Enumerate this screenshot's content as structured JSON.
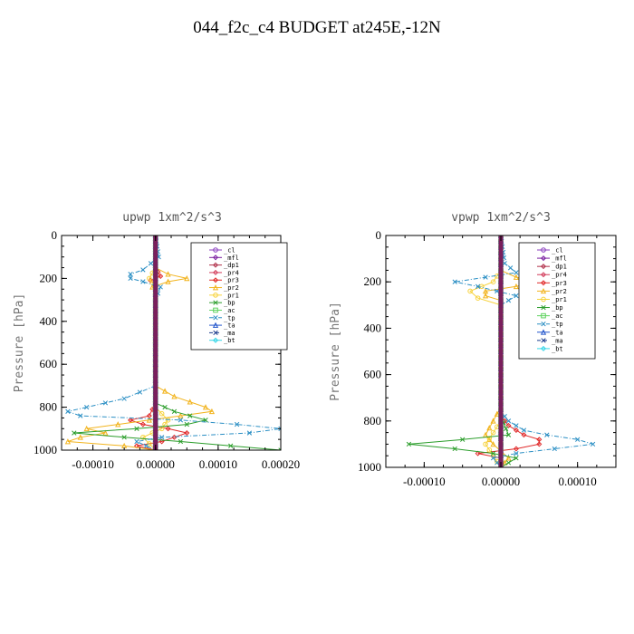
{
  "title": "044_f2c_c4  BUDGET at245E,-12N",
  "chart_data": [
    {
      "type": "line",
      "title": "upwp   1xm^2/s^3",
      "ylabel": "Pressure [hPa]",
      "xlabel": "",
      "xlim": [
        -0.00015,
        0.0002
      ],
      "ylim": [
        1000,
        0
      ],
      "xticks": [
        -0.0001,
        0.0,
        0.0001,
        0.0002
      ],
      "xtick_labels": [
        "-0.00010",
        "0.00000",
        "0.00010",
        "0.00020"
      ],
      "yticks": [
        0,
        200,
        400,
        600,
        800,
        1000
      ],
      "ytick_labels": [
        "0",
        "200",
        "400",
        "600",
        "800",
        "1000"
      ],
      "legend_position": "top-right",
      "series": [
        {
          "name": "_cl",
          "color": "#8b3fbf",
          "p": [
            0,
            1000
          ],
          "x": [
            0,
            0
          ]
        },
        {
          "name": "_mfl",
          "color": "#7a1fa0",
          "p": [
            0,
            1000
          ],
          "x": [
            0,
            0
          ]
        },
        {
          "name": "_dp1",
          "color": "#b0304a",
          "p": [
            0,
            1000
          ],
          "x": [
            0,
            0
          ]
        },
        {
          "name": "_pr4",
          "color": "#d23c5a",
          "p": [
            0,
            1000
          ],
          "x": [
            0,
            0
          ]
        },
        {
          "name": "_pr3",
          "color": "#e02828",
          "p": [
            150,
            190,
            210,
            230,
            780,
            840,
            860,
            880,
            900,
            920,
            940,
            960,
            980,
            1000
          ],
          "x": [
            0,
            8e-06,
            -8e-06,
            0,
            0,
            -1e-05,
            -4e-05,
            -2e-05,
            2e-05,
            5e-05,
            3e-05,
            1e-05,
            -3e-05,
            0
          ]
        },
        {
          "name": "_pr2",
          "color": "#f2b41e",
          "p": [
            150,
            180,
            200,
            215,
            240,
            260,
            700,
            750,
            800,
            820,
            840,
            860,
            880,
            900,
            920,
            940,
            960,
            980,
            1000
          ],
          "x": [
            0,
            2e-05,
            5e-05,
            2e-05,
            -5e-06,
            0,
            0,
            3e-05,
            8e-05,
            9e-05,
            4e-05,
            -1e-05,
            -6e-05,
            -0.00011,
            -8e-05,
            -0.00012,
            -0.00014,
            -5e-05,
            0
          ]
        },
        {
          "name": "_pr1",
          "color": "#f7d23a",
          "p": [
            150,
            200,
            240,
            800,
            860,
            900,
            940,
            1000
          ],
          "x": [
            0,
            -1e-05,
            0,
            0,
            2e-05,
            1e-05,
            -2e-05,
            0
          ]
        },
        {
          "name": "_bp",
          "color": "#2a9d2a",
          "p": [
            780,
            820,
            860,
            880,
            900,
            920,
            940,
            960,
            980,
            1000
          ],
          "x": [
            0,
            3e-05,
            8e-05,
            5e-05,
            -3e-05,
            -0.00013,
            -5e-05,
            4e-05,
            0.00012,
            0.0002
          ]
        },
        {
          "name": "_ac",
          "color": "#5fd35f",
          "p": [
            0,
            1000
          ],
          "x": [
            0,
            0
          ]
        },
        {
          "name": "_tp",
          "color": "#2b8fc4",
          "p": [
            0,
            100,
            160,
            180,
            200,
            215,
            240,
            300,
            700,
            760,
            800,
            820,
            840,
            860,
            880,
            900,
            920,
            940,
            960,
            1000
          ],
          "x": [
            0,
            5e-06,
            -2e-05,
            -4e-05,
            -4e-05,
            -2e-05,
            8e-06,
            0,
            0,
            -5e-05,
            -0.00011,
            -0.00014,
            -0.00012,
            4e-05,
            0.00013,
            0.0002,
            0.00015,
            1e-05,
            -3e-05,
            0
          ]
        },
        {
          "name": "_ta",
          "color": "#2255cc",
          "p": [
            0,
            1000
          ],
          "x": [
            0,
            0
          ]
        },
        {
          "name": "_ma",
          "color": "#1a3b8c",
          "p": [
            0,
            1000
          ],
          "x": [
            0,
            0
          ]
        },
        {
          "name": "_bt",
          "color": "#33d6e8",
          "p": [
            0,
            1000
          ],
          "x": [
            0,
            0
          ]
        }
      ]
    },
    {
      "type": "line",
      "title": "vpwp   1xm^2/s^3",
      "ylabel": "Pressure [hPa]",
      "xlabel": "",
      "xlim": [
        -0.00015,
        0.00015
      ],
      "ylim": [
        1000,
        0
      ],
      "xticks": [
        -0.0001,
        0.0,
        0.0001
      ],
      "xtick_labels": [
        "-0.00010",
        "0.00000",
        "0.00010"
      ],
      "yticks": [
        0,
        200,
        400,
        600,
        800,
        1000
      ],
      "ytick_labels": [
        "0",
        "200",
        "400",
        "600",
        "800",
        "1000"
      ],
      "legend_position": "top-right",
      "series": [
        {
          "name": "_cl",
          "color": "#8b3fbf",
          "p": [
            0,
            1000
          ],
          "x": [
            0,
            0
          ]
        },
        {
          "name": "_mfl",
          "color": "#7a1fa0",
          "p": [
            0,
            1000
          ],
          "x": [
            0,
            0
          ]
        },
        {
          "name": "_dp1",
          "color": "#b0304a",
          "p": [
            0,
            1000
          ],
          "x": [
            0,
            0
          ]
        },
        {
          "name": "_pr4",
          "color": "#d23c5a",
          "p": [
            0,
            1000
          ],
          "x": [
            0,
            0
          ]
        },
        {
          "name": "_pr3",
          "color": "#e02828",
          "p": [
            780,
            820,
            860,
            880,
            900,
            920,
            940,
            960,
            1000
          ],
          "x": [
            0,
            1e-05,
            3e-05,
            5e-05,
            5e-05,
            2e-05,
            -3e-05,
            0,
            0
          ]
        },
        {
          "name": "_pr2",
          "color": "#f2b41e",
          "p": [
            150,
            180,
            200,
            220,
            240,
            260,
            280,
            740,
            800,
            860,
            900,
            960,
            1000
          ],
          "x": [
            0,
            2e-05,
            5e-05,
            2e-05,
            -2e-05,
            -2e-05,
            0,
            0,
            -1e-05,
            -2e-05,
            -1e-05,
            1e-05,
            0
          ]
        },
        {
          "name": "_pr1",
          "color": "#f7d23a",
          "p": [
            150,
            200,
            240,
            270,
            300,
            800,
            900,
            1000
          ],
          "x": [
            0,
            -1e-05,
            -4e-05,
            -3e-05,
            0,
            0,
            -2e-05,
            0
          ]
        },
        {
          "name": "_bp",
          "color": "#2a9d2a",
          "p": [
            780,
            860,
            880,
            900,
            920,
            940,
            960,
            980,
            1000
          ],
          "x": [
            0,
            1e-05,
            -5e-05,
            -0.00012,
            -6e-05,
            -1e-05,
            2e-05,
            1e-05,
            0
          ]
        },
        {
          "name": "_ac",
          "color": "#5fd35f",
          "p": [
            0,
            1000
          ],
          "x": [
            0,
            0
          ]
        },
        {
          "name": "_tp",
          "color": "#2b8fc4",
          "p": [
            0,
            120,
            160,
            180,
            200,
            220,
            260,
            300,
            760,
            800,
            840,
            860,
            880,
            900,
            920,
            940,
            960,
            1000
          ],
          "x": [
            0,
            5e-06,
            2e-05,
            -2e-05,
            -6e-05,
            -3e-05,
            2e-05,
            0,
            0,
            1e-05,
            3e-05,
            6e-05,
            0.0001,
            0.00012,
            7e-05,
            2e-05,
            -1e-05,
            0
          ]
        },
        {
          "name": "_ta",
          "color": "#2255cc",
          "p": [
            0,
            1000
          ],
          "x": [
            0,
            0
          ]
        },
        {
          "name": "_ma",
          "color": "#1a3b8c",
          "p": [
            0,
            1000
          ],
          "x": [
            0,
            0
          ]
        },
        {
          "name": "_bt",
          "color": "#33d6e8",
          "p": [
            0,
            1000
          ],
          "x": [
            0,
            0
          ]
        }
      ]
    }
  ]
}
